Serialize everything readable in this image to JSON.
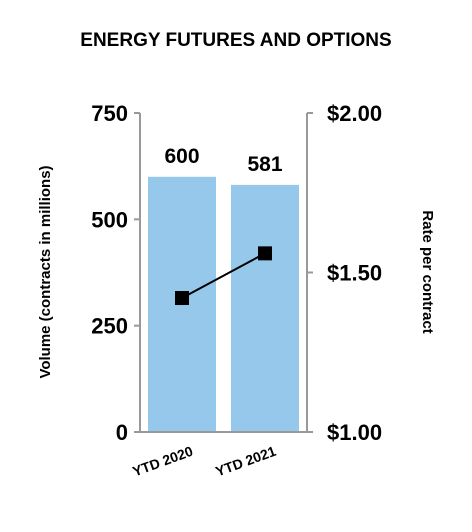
{
  "chart_data": {
    "type": "bar",
    "title": "ENERGY FUTURES AND OPTIONS",
    "categories": [
      "YTD 2020",
      "YTD 2021"
    ],
    "series": [
      {
        "name": "Volume (contracts in millions)",
        "type": "bar",
        "axis": "left",
        "values": [
          600,
          581
        ],
        "data_labels": [
          "600",
          "581"
        ],
        "color": "#95c8ea"
      },
      {
        "name": "Rate per contract",
        "type": "line",
        "axis": "right",
        "values": [
          1.42,
          1.56
        ],
        "color": "#000000",
        "marker": "square"
      }
    ],
    "ylabel": "Volume (contracts in millions)",
    "y2label": "Rate per contract",
    "ylim": [
      0,
      750
    ],
    "y2lim": [
      1.0,
      2.0
    ],
    "yticks": [
      "0",
      "250",
      "500",
      "750"
    ],
    "y2ticks": [
      "$1.00",
      "$1.50",
      "$2.00"
    ],
    "grid": false,
    "legend": "none"
  }
}
